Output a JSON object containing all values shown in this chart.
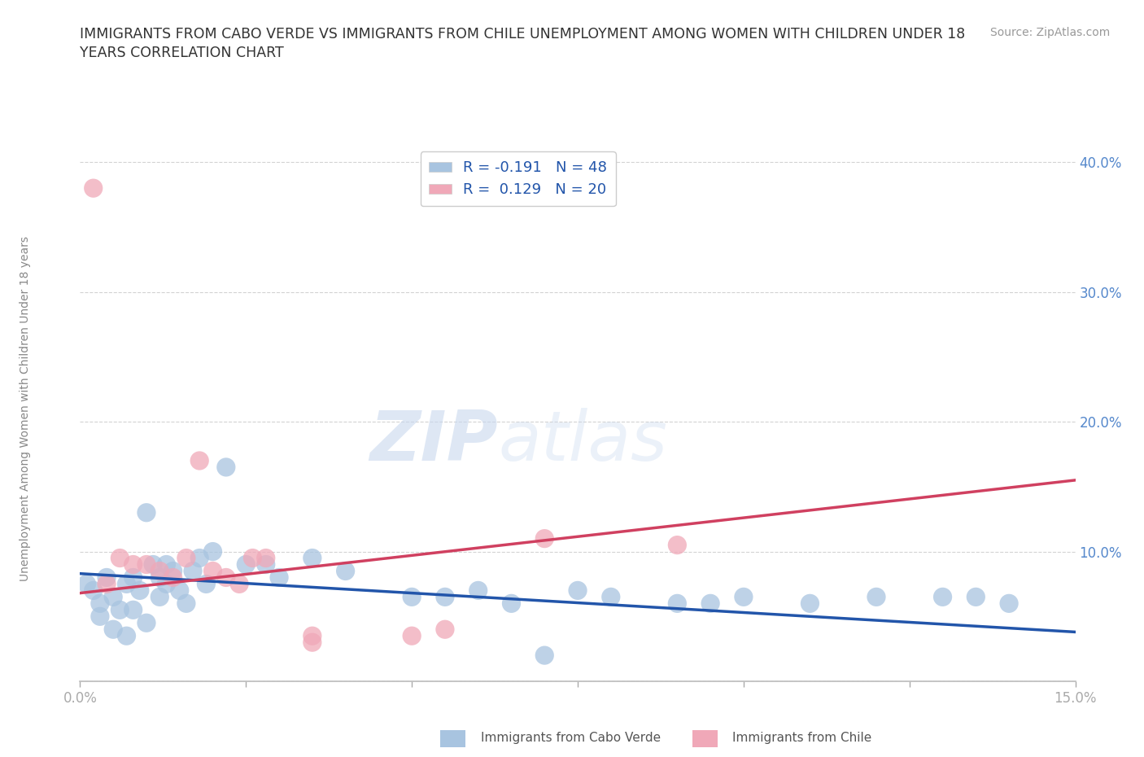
{
  "title": "IMMIGRANTS FROM CABO VERDE VS IMMIGRANTS FROM CHILE UNEMPLOYMENT AMONG WOMEN WITH CHILDREN UNDER 18\nYEARS CORRELATION CHART",
  "source_text": "Source: ZipAtlas.com",
  "ylabel": "Unemployment Among Women with Children Under 18 years",
  "xlim": [
    0.0,
    0.15
  ],
  "ylim": [
    0.0,
    0.42
  ],
  "grid_color": "#c8c8c8",
  "bg_color": "#ffffff",
  "watermark_1": "ZIP",
  "watermark_2": "atlas",
  "cabo_verde_color": "#a8c4e0",
  "chile_color": "#f0a8b8",
  "cabo_verde_line_color": "#2255aa",
  "chile_line_color": "#d04060",
  "cabo_verde_R": -0.191,
  "cabo_verde_N": 48,
  "chile_R": 0.129,
  "chile_N": 20,
  "cabo_verde_x": [
    0.001,
    0.002,
    0.003,
    0.003,
    0.004,
    0.005,
    0.005,
    0.006,
    0.007,
    0.007,
    0.008,
    0.008,
    0.009,
    0.01,
    0.01,
    0.011,
    0.012,
    0.012,
    0.013,
    0.013,
    0.014,
    0.015,
    0.016,
    0.017,
    0.018,
    0.019,
    0.02,
    0.022,
    0.025,
    0.028,
    0.03,
    0.035,
    0.04,
    0.05,
    0.055,
    0.06,
    0.065,
    0.07,
    0.075,
    0.08,
    0.09,
    0.095,
    0.1,
    0.11,
    0.12,
    0.13,
    0.135,
    0.14
  ],
  "cabo_verde_y": [
    0.075,
    0.07,
    0.06,
    0.05,
    0.08,
    0.065,
    0.04,
    0.055,
    0.075,
    0.035,
    0.08,
    0.055,
    0.07,
    0.13,
    0.045,
    0.09,
    0.065,
    0.08,
    0.09,
    0.075,
    0.085,
    0.07,
    0.06,
    0.085,
    0.095,
    0.075,
    0.1,
    0.165,
    0.09,
    0.09,
    0.08,
    0.095,
    0.085,
    0.065,
    0.065,
    0.07,
    0.06,
    0.02,
    0.07,
    0.065,
    0.06,
    0.06,
    0.065,
    0.06,
    0.065,
    0.065,
    0.065,
    0.06
  ],
  "chile_x": [
    0.002,
    0.004,
    0.006,
    0.008,
    0.01,
    0.012,
    0.014,
    0.016,
    0.018,
    0.02,
    0.022,
    0.024,
    0.026,
    0.028,
    0.035,
    0.035,
    0.05,
    0.055,
    0.07,
    0.09
  ],
  "chile_y": [
    0.38,
    0.075,
    0.095,
    0.09,
    0.09,
    0.085,
    0.08,
    0.095,
    0.17,
    0.085,
    0.08,
    0.075,
    0.095,
    0.095,
    0.03,
    0.035,
    0.035,
    0.04,
    0.11,
    0.105
  ],
  "cabo_verde_line_x": [
    0.0,
    0.15
  ],
  "cabo_verde_line_y": [
    0.083,
    0.038
  ],
  "chile_line_x": [
    0.0,
    0.15
  ],
  "chile_line_y": [
    0.068,
    0.155
  ]
}
